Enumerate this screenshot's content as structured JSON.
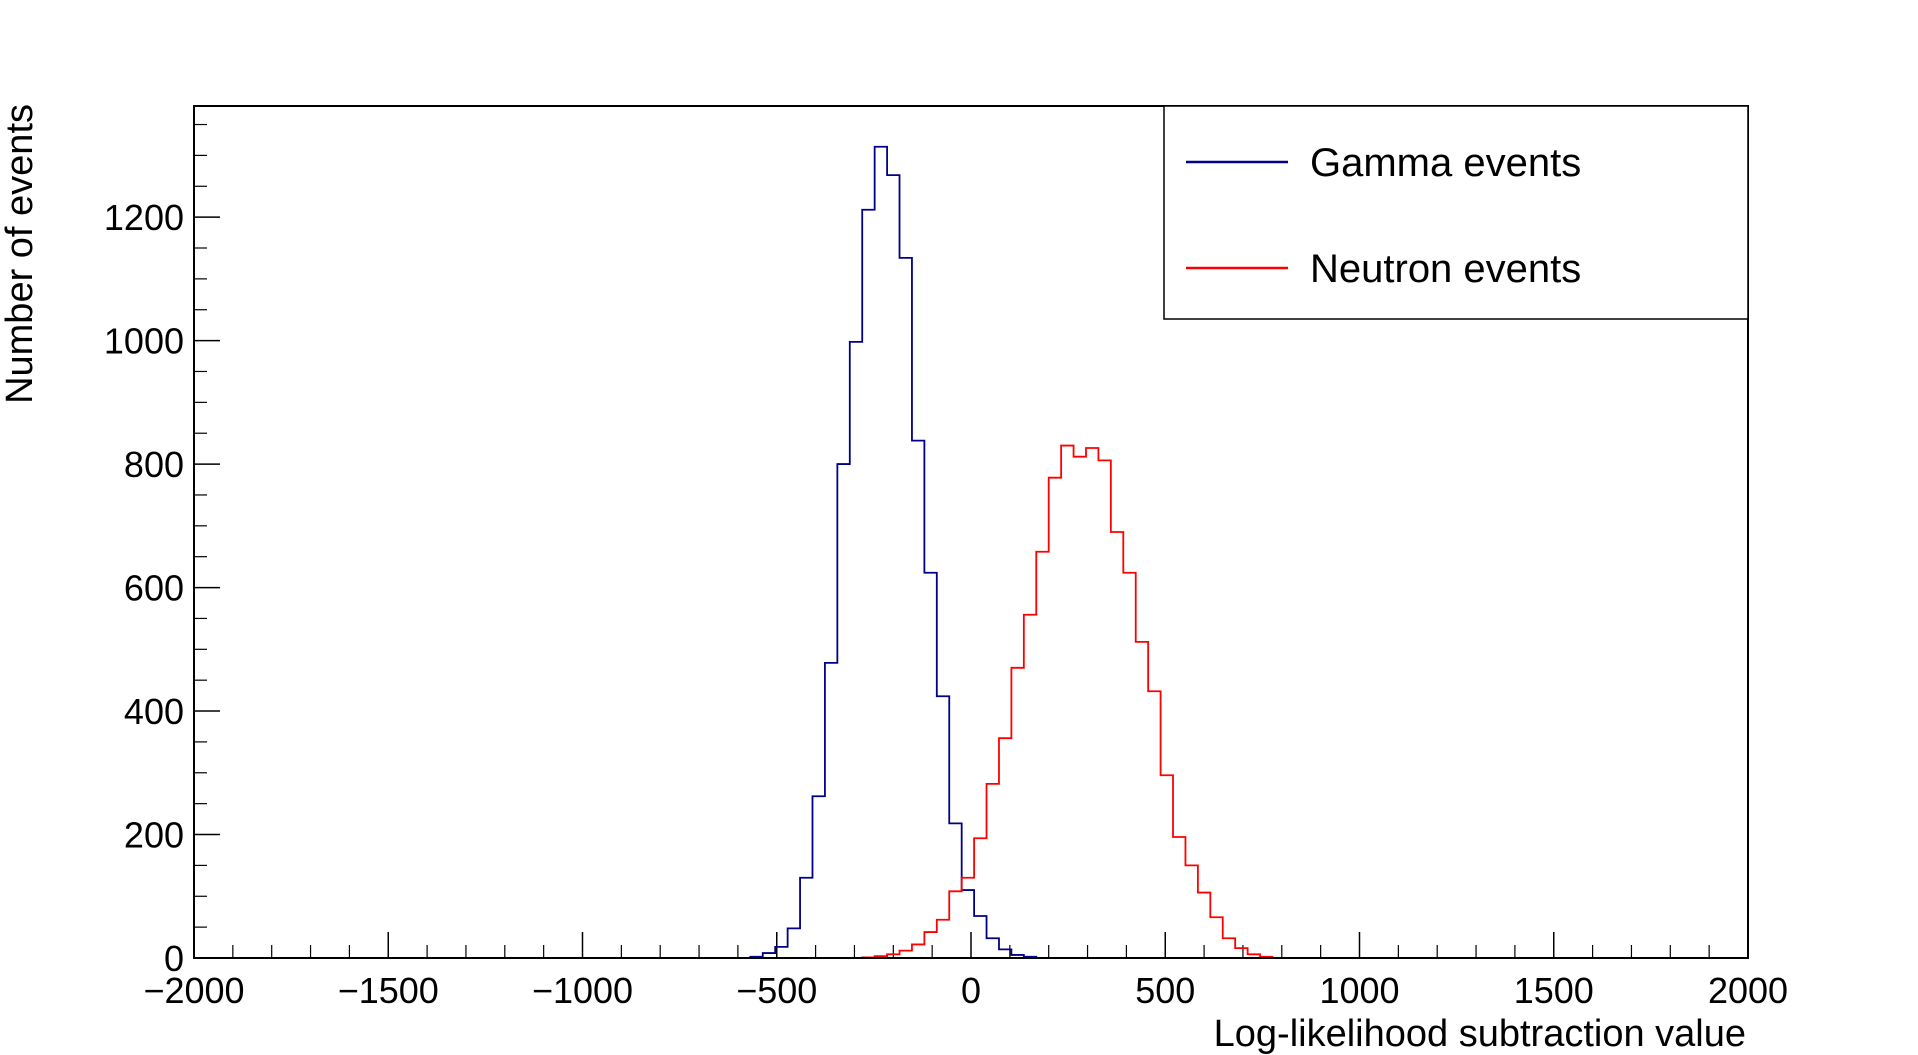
{
  "chart_data": {
    "type": "histogram-step",
    "xlabel": "Log-likelihood subtraction value",
    "ylabel": "Number of events",
    "xlim": [
      -2000,
      2000
    ],
    "ylim": [
      0,
      1380
    ],
    "x_ticks": [
      -2000,
      -1500,
      -1000,
      -500,
      0,
      500,
      1000,
      1500,
      2000
    ],
    "x_tick_labels": [
      "−2000",
      "−1500",
      "−1000",
      "−500",
      "0",
      "500",
      "1000",
      "1500",
      "2000"
    ],
    "y_ticks": [
      0,
      200,
      400,
      600,
      800,
      1000,
      1200
    ],
    "y_tick_labels": [
      "0",
      "200",
      "400",
      "600",
      "800",
      "1000",
      "1200"
    ],
    "grid": false,
    "legend_position": "top-right",
    "bin_width": 32,
    "series": [
      {
        "name": "Gamma events",
        "color": "#00008b",
        "bins": [
          [
            -568,
            2
          ],
          [
            -536,
            8
          ],
          [
            -504,
            18
          ],
          [
            -472,
            48
          ],
          [
            -440,
            130
          ],
          [
            -408,
            262
          ],
          [
            -376,
            478
          ],
          [
            -344,
            800
          ],
          [
            -312,
            998
          ],
          [
            -280,
            1212
          ],
          [
            -248,
            1314
          ],
          [
            -216,
            1268
          ],
          [
            -184,
            1134
          ],
          [
            -152,
            838
          ],
          [
            -120,
            624
          ],
          [
            -88,
            424
          ],
          [
            -56,
            218
          ],
          [
            -24,
            110
          ],
          [
            8,
            68
          ],
          [
            40,
            32
          ],
          [
            72,
            14
          ],
          [
            104,
            5
          ],
          [
            136,
            2
          ]
        ]
      },
      {
        "name": "Neutron events",
        "color": "#ff0000",
        "bins": [
          [
            -280,
            1
          ],
          [
            -248,
            3
          ],
          [
            -216,
            6
          ],
          [
            -184,
            12
          ],
          [
            -152,
            22
          ],
          [
            -120,
            42
          ],
          [
            -88,
            62
          ],
          [
            -56,
            108
          ],
          [
            -24,
            130
          ],
          [
            8,
            194
          ],
          [
            40,
            282
          ],
          [
            72,
            356
          ],
          [
            104,
            470
          ],
          [
            136,
            556
          ],
          [
            168,
            658
          ],
          [
            200,
            778
          ],
          [
            232,
            830
          ],
          [
            264,
            812
          ],
          [
            296,
            826
          ],
          [
            328,
            806
          ],
          [
            360,
            690
          ],
          [
            392,
            624
          ],
          [
            424,
            512
          ],
          [
            456,
            432
          ],
          [
            488,
            296
          ],
          [
            520,
            196
          ],
          [
            552,
            150
          ],
          [
            584,
            106
          ],
          [
            616,
            66
          ],
          [
            648,
            32
          ],
          [
            680,
            16
          ],
          [
            712,
            6
          ],
          [
            744,
            2
          ]
        ]
      }
    ]
  }
}
